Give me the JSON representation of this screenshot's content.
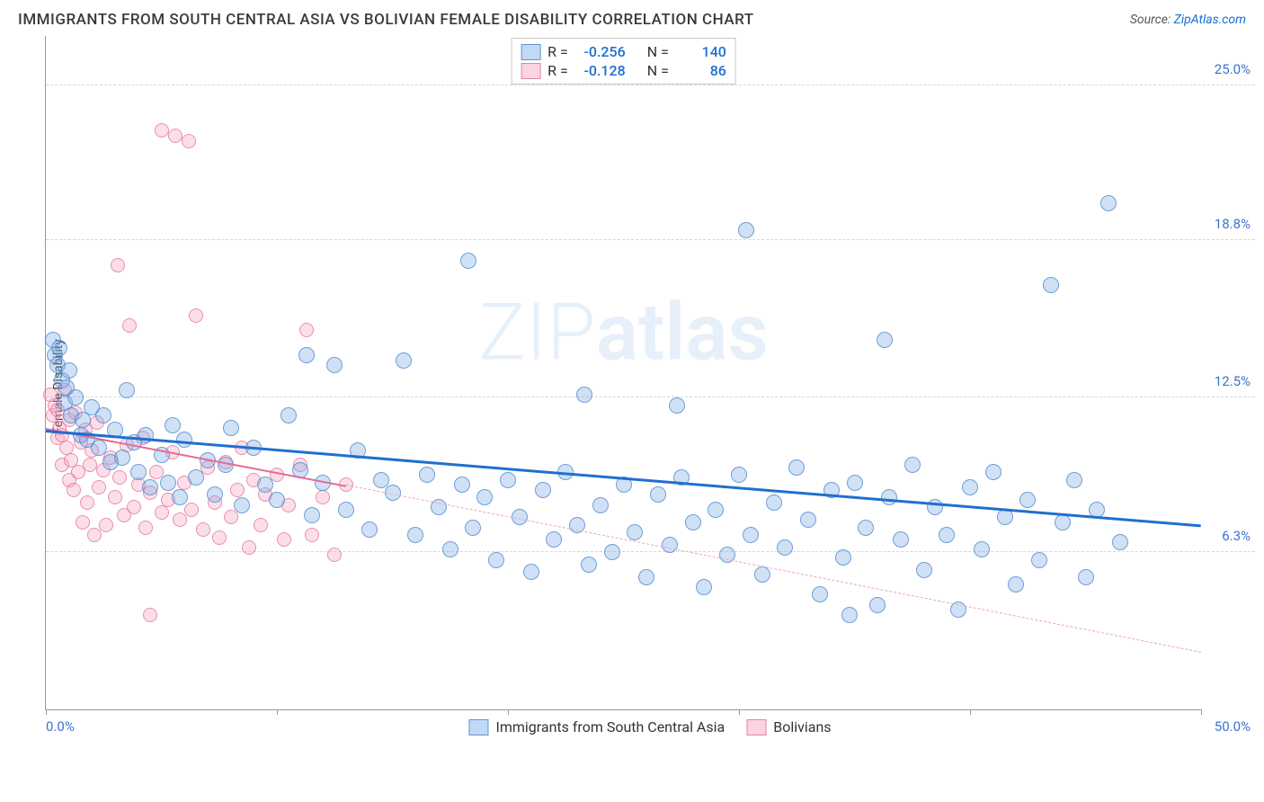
{
  "title": "IMMIGRANTS FROM SOUTH CENTRAL ASIA VS BOLIVIAN FEMALE DISABILITY CORRELATION CHART",
  "source_prefix": "Source: ",
  "source_name": "ZipAtlas.com",
  "watermark_pre": "ZIP",
  "watermark_bold": "atlas",
  "ylabel": "Female Disability",
  "chart": {
    "type": "scatter",
    "xlim": [
      0,
      50
    ],
    "ylim": [
      0,
      27
    ],
    "x_min_label": "0.0%",
    "x_max_label": "50.0%",
    "yticks": [
      {
        "v": 6.3,
        "label": "6.3%"
      },
      {
        "v": 12.5,
        "label": "12.5%"
      },
      {
        "v": 18.8,
        "label": "18.8%"
      },
      {
        "v": 25.0,
        "label": "25.0%"
      }
    ],
    "xtick_positions": [
      0,
      10,
      20,
      30,
      40,
      50
    ],
    "grid_color": "#d8d8d8",
    "bg_color": "#ffffff",
    "marker_radius": 9
  },
  "top_legend": [
    {
      "swatch": "blue",
      "r_label": "R =",
      "r": "-0.256",
      "n_label": "N =",
      "n": "140"
    },
    {
      "swatch": "pink",
      "r_label": "R =",
      "r": "-0.128",
      "n_label": "N =",
      "n": "86"
    }
  ],
  "bottom_legend": [
    {
      "swatch": "blue",
      "label": "Immigrants from South Central Asia"
    },
    {
      "swatch": "pink",
      "label": "Bolivians"
    }
  ],
  "series": {
    "blue": {
      "color_fill": "rgba(120,170,230,0.35)",
      "color_stroke": "rgba(70,130,200,0.7)",
      "trend": {
        "x1": 0,
        "y1": 11.2,
        "x2": 50,
        "y2": 7.4,
        "color": "#1f6fd0",
        "width": 3
      },
      "points": [
        [
          0.3,
          14.8
        ],
        [
          0.4,
          14.2
        ],
        [
          0.5,
          13.8
        ],
        [
          0.6,
          14.5
        ],
        [
          0.7,
          13.2
        ],
        [
          0.8,
          12.3
        ],
        [
          0.9,
          12.9
        ],
        [
          1.0,
          13.6
        ],
        [
          1.1,
          11.8
        ],
        [
          1.3,
          12.5
        ],
        [
          1.5,
          11.0
        ],
        [
          1.6,
          11.6
        ],
        [
          1.8,
          10.8
        ],
        [
          2.0,
          12.1
        ],
        [
          2.3,
          10.5
        ],
        [
          2.5,
          11.8
        ],
        [
          2.8,
          9.9
        ],
        [
          3.0,
          11.2
        ],
        [
          3.3,
          10.1
        ],
        [
          3.5,
          12.8
        ],
        [
          3.8,
          10.7
        ],
        [
          4.0,
          9.5
        ],
        [
          4.3,
          11.0
        ],
        [
          4.5,
          8.9
        ],
        [
          5.0,
          10.2
        ],
        [
          5.3,
          9.1
        ],
        [
          5.5,
          11.4
        ],
        [
          5.8,
          8.5
        ],
        [
          6.0,
          10.8
        ],
        [
          6.5,
          9.3
        ],
        [
          7.0,
          10.0
        ],
        [
          7.3,
          8.6
        ],
        [
          7.8,
          9.8
        ],
        [
          8.0,
          11.3
        ],
        [
          8.5,
          8.2
        ],
        [
          9.0,
          10.5
        ],
        [
          9.5,
          9.0
        ],
        [
          10.0,
          8.4
        ],
        [
          10.5,
          11.8
        ],
        [
          11.0,
          9.6
        ],
        [
          11.3,
          14.2
        ],
        [
          11.5,
          7.8
        ],
        [
          12.0,
          9.1
        ],
        [
          12.5,
          13.8
        ],
        [
          13.0,
          8.0
        ],
        [
          13.5,
          10.4
        ],
        [
          14.0,
          7.2
        ],
        [
          14.5,
          9.2
        ],
        [
          15.0,
          8.7
        ],
        [
          15.5,
          14.0
        ],
        [
          16.0,
          7.0
        ],
        [
          16.5,
          9.4
        ],
        [
          17.0,
          8.1
        ],
        [
          17.5,
          6.4
        ],
        [
          18.0,
          9.0
        ],
        [
          18.3,
          18.0
        ],
        [
          18.5,
          7.3
        ],
        [
          19.0,
          8.5
        ],
        [
          19.5,
          6.0
        ],
        [
          20.0,
          9.2
        ],
        [
          20.5,
          7.7
        ],
        [
          21.0,
          5.5
        ],
        [
          21.5,
          8.8
        ],
        [
          22.0,
          6.8
        ],
        [
          22.5,
          9.5
        ],
        [
          23.0,
          7.4
        ],
        [
          23.3,
          12.6
        ],
        [
          23.5,
          5.8
        ],
        [
          24.0,
          8.2
        ],
        [
          24.5,
          6.3
        ],
        [
          25.0,
          9.0
        ],
        [
          25.5,
          7.1
        ],
        [
          26.0,
          5.3
        ],
        [
          26.5,
          8.6
        ],
        [
          27.0,
          6.6
        ],
        [
          27.3,
          12.2
        ],
        [
          27.5,
          9.3
        ],
        [
          28.0,
          7.5
        ],
        [
          28.5,
          4.9
        ],
        [
          29.0,
          8.0
        ],
        [
          29.5,
          6.2
        ],
        [
          30.0,
          9.4
        ],
        [
          30.3,
          19.2
        ],
        [
          30.5,
          7.0
        ],
        [
          31.0,
          5.4
        ],
        [
          31.5,
          8.3
        ],
        [
          32.0,
          6.5
        ],
        [
          32.5,
          9.7
        ],
        [
          33.0,
          7.6
        ],
        [
          33.5,
          4.6
        ],
        [
          34.0,
          8.8
        ],
        [
          34.5,
          6.1
        ],
        [
          34.8,
          3.8
        ],
        [
          35.0,
          9.1
        ],
        [
          35.5,
          7.3
        ],
        [
          36.0,
          4.2
        ],
        [
          36.3,
          14.8
        ],
        [
          36.5,
          8.5
        ],
        [
          37.0,
          6.8
        ],
        [
          37.5,
          9.8
        ],
        [
          38.0,
          5.6
        ],
        [
          38.5,
          8.1
        ],
        [
          39.0,
          7.0
        ],
        [
          39.5,
          4.0
        ],
        [
          40.0,
          8.9
        ],
        [
          40.5,
          6.4
        ],
        [
          41.0,
          9.5
        ],
        [
          41.5,
          7.7
        ],
        [
          42.0,
          5.0
        ],
        [
          42.5,
          8.4
        ],
        [
          43.0,
          6.0
        ],
        [
          43.5,
          17.0
        ],
        [
          44.0,
          7.5
        ],
        [
          44.5,
          9.2
        ],
        [
          45.0,
          5.3
        ],
        [
          45.5,
          8.0
        ],
        [
          46.0,
          20.3
        ],
        [
          46.5,
          6.7
        ]
      ]
    },
    "pink": {
      "color_fill": "rgba(245,160,190,0.35)",
      "color_stroke": "rgba(225,110,150,0.7)",
      "trend_solid": {
        "x1": 0,
        "y1": 11.3,
        "x2": 13,
        "y2": 9.0,
        "color": "#e56a95",
        "width": 2
      },
      "trend_dash": {
        "x1": 13,
        "y1": 9.0,
        "x2": 50,
        "y2": 2.3,
        "color": "#e9a6bd",
        "width": 1
      },
      "points": [
        [
          0.2,
          12.6
        ],
        [
          0.3,
          11.8
        ],
        [
          0.4,
          12.2
        ],
        [
          0.5,
          10.9
        ],
        [
          0.5,
          12.0
        ],
        [
          0.6,
          11.3
        ],
        [
          0.7,
          9.8
        ],
        [
          0.7,
          11.0
        ],
        [
          0.8,
          12.8
        ],
        [
          0.9,
          10.5
        ],
        [
          1.0,
          9.2
        ],
        [
          1.0,
          11.6
        ],
        [
          1.1,
          10.0
        ],
        [
          1.2,
          8.8
        ],
        [
          1.3,
          11.9
        ],
        [
          1.4,
          9.5
        ],
        [
          1.5,
          10.7
        ],
        [
          1.6,
          7.5
        ],
        [
          1.7,
          11.2
        ],
        [
          1.8,
          8.3
        ],
        [
          1.9,
          9.8
        ],
        [
          2.0,
          10.4
        ],
        [
          2.1,
          7.0
        ],
        [
          2.2,
          11.5
        ],
        [
          2.3,
          8.9
        ],
        [
          2.5,
          9.6
        ],
        [
          2.6,
          7.4
        ],
        [
          2.8,
          10.1
        ],
        [
          3.0,
          8.5
        ],
        [
          3.1,
          17.8
        ],
        [
          3.2,
          9.3
        ],
        [
          3.4,
          7.8
        ],
        [
          3.5,
          10.6
        ],
        [
          3.6,
          15.4
        ],
        [
          3.8,
          8.1
        ],
        [
          4.0,
          9.0
        ],
        [
          4.2,
          10.9
        ],
        [
          4.3,
          7.3
        ],
        [
          4.5,
          8.7
        ],
        [
          4.8,
          9.5
        ],
        [
          5.0,
          7.9
        ],
        [
          5.0,
          23.2
        ],
        [
          5.3,
          8.4
        ],
        [
          5.5,
          10.3
        ],
        [
          5.6,
          23.0
        ],
        [
          5.8,
          7.6
        ],
        [
          6.0,
          9.1
        ],
        [
          6.2,
          22.8
        ],
        [
          6.3,
          8.0
        ],
        [
          6.5,
          15.8
        ],
        [
          6.8,
          7.2
        ],
        [
          7.0,
          9.7
        ],
        [
          7.3,
          8.3
        ],
        [
          7.5,
          6.9
        ],
        [
          7.8,
          9.9
        ],
        [
          8.0,
          7.7
        ],
        [
          8.3,
          8.8
        ],
        [
          8.5,
          10.5
        ],
        [
          8.8,
          6.5
        ],
        [
          9.0,
          9.2
        ],
        [
          9.3,
          7.4
        ],
        [
          9.5,
          8.6
        ],
        [
          10.0,
          9.4
        ],
        [
          10.3,
          6.8
        ],
        [
          10.5,
          8.2
        ],
        [
          11.0,
          9.8
        ],
        [
          11.3,
          15.2
        ],
        [
          11.5,
          7.0
        ],
        [
          12.0,
          8.5
        ],
        [
          12.5,
          6.2
        ],
        [
          13.0,
          9.0
        ],
        [
          4.5,
          3.8
        ]
      ]
    }
  }
}
